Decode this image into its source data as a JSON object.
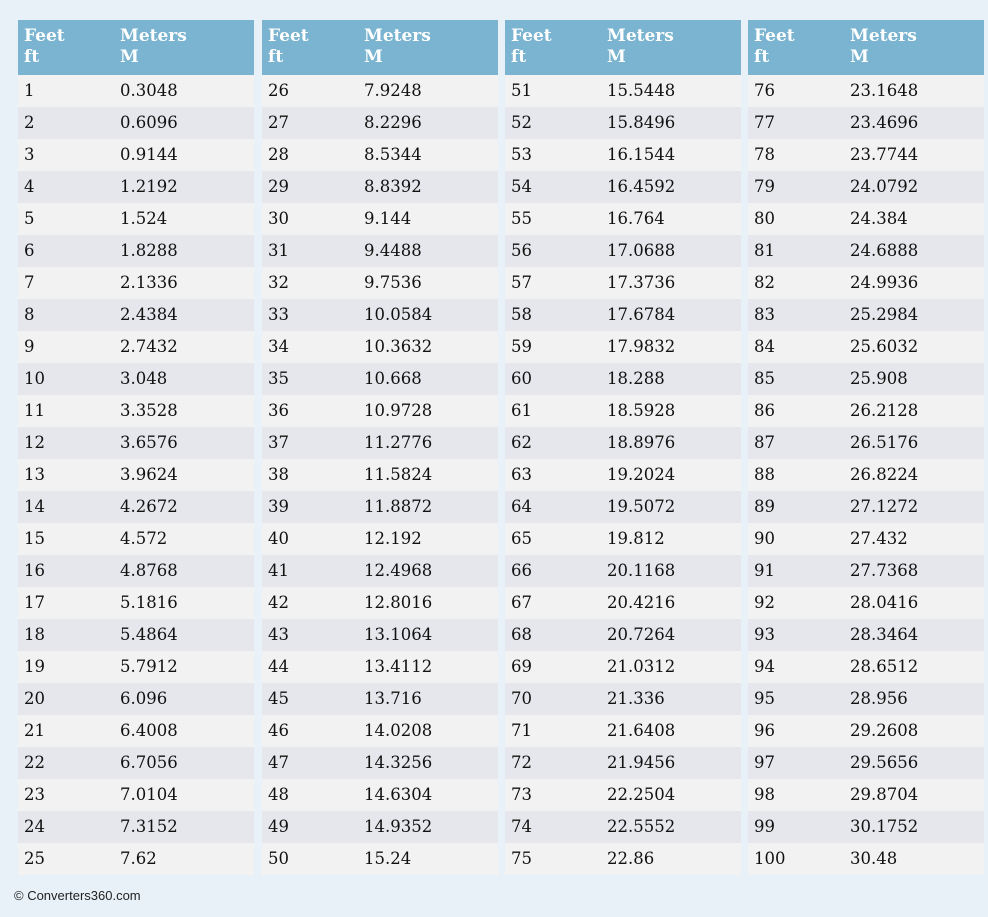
{
  "tables": [
    {
      "headers": [
        [
          "Feet",
          "ft"
        ],
        [
          "Meters",
          "M"
        ]
      ],
      "rows": [
        [
          "1",
          "0.3048"
        ],
        [
          "2",
          "0.6096"
        ],
        [
          "3",
          "0.9144"
        ],
        [
          "4",
          "1.2192"
        ],
        [
          "5",
          "1.524"
        ],
        [
          "6",
          "1.8288"
        ],
        [
          "7",
          "2.1336"
        ],
        [
          "8",
          "2.4384"
        ],
        [
          "9",
          "2.7432"
        ],
        [
          "10",
          "3.048"
        ],
        [
          "11",
          "3.3528"
        ],
        [
          "12",
          "3.6576"
        ],
        [
          "13",
          "3.9624"
        ],
        [
          "14",
          "4.2672"
        ],
        [
          "15",
          "4.572"
        ],
        [
          "16",
          "4.8768"
        ],
        [
          "17",
          "5.1816"
        ],
        [
          "18",
          "5.4864"
        ],
        [
          "19",
          "5.7912"
        ],
        [
          "20",
          "6.096"
        ],
        [
          "21",
          "6.4008"
        ],
        [
          "22",
          "6.7056"
        ],
        [
          "23",
          "7.0104"
        ],
        [
          "24",
          "7.3152"
        ],
        [
          "25",
          "7.62"
        ]
      ]
    },
    {
      "headers": [
        [
          "Feet",
          "ft"
        ],
        [
          "Meters",
          "M"
        ]
      ],
      "rows": [
        [
          "26",
          "7.9248"
        ],
        [
          "27",
          "8.2296"
        ],
        [
          "28",
          "8.5344"
        ],
        [
          "29",
          "8.8392"
        ],
        [
          "30",
          "9.144"
        ],
        [
          "31",
          "9.4488"
        ],
        [
          "32",
          "9.7536"
        ],
        [
          "33",
          "10.0584"
        ],
        [
          "34",
          "10.3632"
        ],
        [
          "35",
          "10.668"
        ],
        [
          "36",
          "10.9728"
        ],
        [
          "37",
          "11.2776"
        ],
        [
          "38",
          "11.5824"
        ],
        [
          "39",
          "11.8872"
        ],
        [
          "40",
          "12.192"
        ],
        [
          "41",
          "12.4968"
        ],
        [
          "42",
          "12.8016"
        ],
        [
          "43",
          "13.1064"
        ],
        [
          "44",
          "13.4112"
        ],
        [
          "45",
          "13.716"
        ],
        [
          "46",
          "14.0208"
        ],
        [
          "47",
          "14.3256"
        ],
        [
          "48",
          "14.6304"
        ],
        [
          "49",
          "14.9352"
        ],
        [
          "50",
          "15.24"
        ]
      ]
    },
    {
      "headers": [
        [
          "Feet",
          "ft"
        ],
        [
          "Meters",
          "M"
        ]
      ],
      "rows": [
        [
          "51",
          "15.5448"
        ],
        [
          "52",
          "15.8496"
        ],
        [
          "53",
          "16.1544"
        ],
        [
          "54",
          "16.4592"
        ],
        [
          "55",
          "16.764"
        ],
        [
          "56",
          "17.0688"
        ],
        [
          "57",
          "17.3736"
        ],
        [
          "58",
          "17.6784"
        ],
        [
          "59",
          "17.9832"
        ],
        [
          "60",
          "18.288"
        ],
        [
          "61",
          "18.5928"
        ],
        [
          "62",
          "18.8976"
        ],
        [
          "63",
          "19.2024"
        ],
        [
          "64",
          "19.5072"
        ],
        [
          "65",
          "19.812"
        ],
        [
          "66",
          "20.1168"
        ],
        [
          "67",
          "20.4216"
        ],
        [
          "68",
          "20.7264"
        ],
        [
          "69",
          "21.0312"
        ],
        [
          "70",
          "21.336"
        ],
        [
          "71",
          "21.6408"
        ],
        [
          "72",
          "21.9456"
        ],
        [
          "73",
          "22.2504"
        ],
        [
          "74",
          "22.5552"
        ],
        [
          "75",
          "22.86"
        ]
      ]
    },
    {
      "headers": [
        [
          "Feet",
          "ft"
        ],
        [
          "Meters",
          "M"
        ]
      ],
      "rows": [
        [
          "76",
          "23.1648"
        ],
        [
          "77",
          "23.4696"
        ],
        [
          "78",
          "23.7744"
        ],
        [
          "79",
          "24.0792"
        ],
        [
          "80",
          "24.384"
        ],
        [
          "81",
          "24.6888"
        ],
        [
          "82",
          "24.9936"
        ],
        [
          "83",
          "25.2984"
        ],
        [
          "84",
          "25.6032"
        ],
        [
          "85",
          "25.908"
        ],
        [
          "86",
          "26.2128"
        ],
        [
          "87",
          "26.5176"
        ],
        [
          "88",
          "26.8224"
        ],
        [
          "89",
          "27.1272"
        ],
        [
          "90",
          "27.432"
        ],
        [
          "91",
          "27.7368"
        ],
        [
          "92",
          "28.0416"
        ],
        [
          "93",
          "28.3464"
        ],
        [
          "94",
          "28.6512"
        ],
        [
          "95",
          "28.956"
        ],
        [
          "96",
          "29.2608"
        ],
        [
          "97",
          "29.5656"
        ],
        [
          "98",
          "29.8704"
        ],
        [
          "99",
          "30.1752"
        ],
        [
          "100",
          "30.48"
        ]
      ]
    }
  ],
  "footer": "© Converters360.com"
}
